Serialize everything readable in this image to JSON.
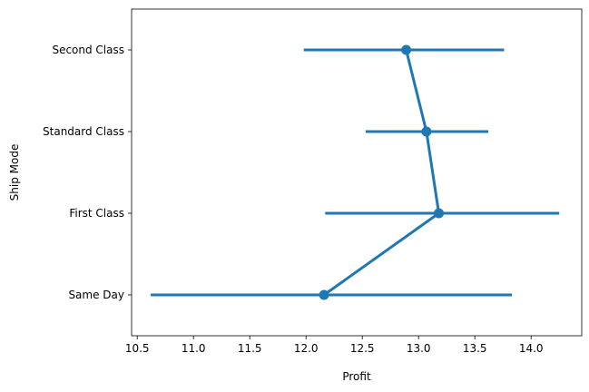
{
  "chart_data": {
    "type": "pointplot",
    "orientation": "horizontal",
    "xlabel": "Profit",
    "ylabel": "Ship Mode",
    "xlim": [
      10.45,
      14.45
    ],
    "x_ticks": [
      "10.5",
      "11.0",
      "11.5",
      "12.0",
      "12.5",
      "13.0",
      "13.5",
      "14.0"
    ],
    "x_tick_values": [
      10.5,
      11.0,
      11.5,
      12.0,
      12.5,
      13.0,
      13.5,
      14.0
    ],
    "categories": [
      "Second Class",
      "Standard Class",
      "First Class",
      "Same Day"
    ],
    "estimates": [
      12.89,
      13.07,
      13.18,
      12.16
    ],
    "ci_low": [
      11.98,
      12.53,
      12.17,
      10.62
    ],
    "ci_high": [
      13.76,
      13.62,
      14.25,
      13.83
    ],
    "color": "#1f77b4",
    "grid": false,
    "legend": null
  }
}
